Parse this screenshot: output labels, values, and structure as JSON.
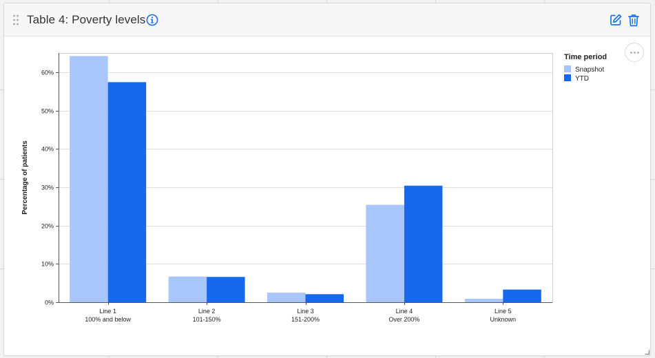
{
  "card": {
    "title": "Table 4: Poverty levels"
  },
  "icons": {
    "drag": "drag-handle-icon",
    "info": "info-icon",
    "edit": "edit-icon",
    "delete": "trash-icon",
    "more": "more-options-icon"
  },
  "colors": {
    "snapshot": "#a8c6fa",
    "ytd": "#1669ed",
    "accent": "#1a73e8"
  },
  "chart_data": {
    "type": "bar",
    "ylabel": "Percentage of patients",
    "xlabel": "",
    "ylim": [
      0,
      65
    ],
    "yticks": [
      "0%",
      "10%",
      "20%",
      "30%",
      "40%",
      "50%",
      "60%"
    ],
    "ytick_values": [
      0,
      10,
      20,
      30,
      40,
      50,
      60
    ],
    "grid": true,
    "categories": [
      [
        "Line 1",
        "100% and below"
      ],
      [
        "Line 2",
        "101-150%"
      ],
      [
        "Line 3",
        "151-200%"
      ],
      [
        "Line 4",
        "Over 200%"
      ],
      [
        "Line 5",
        "Unknown"
      ]
    ],
    "legend": {
      "title": "Time period",
      "placement": "top-right"
    },
    "series": [
      {
        "name": "Snapshot",
        "values": [
          64.2,
          6.7,
          2.5,
          25.4,
          0.9
        ]
      },
      {
        "name": "YTD",
        "values": [
          57.4,
          6.6,
          2.1,
          30.4,
          3.3
        ]
      }
    ]
  }
}
